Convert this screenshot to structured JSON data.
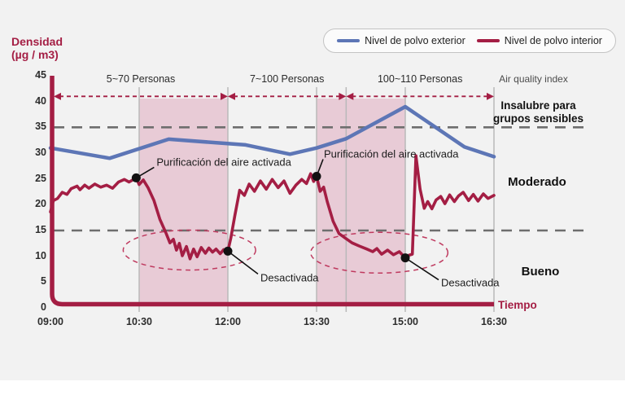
{
  "header": {
    "y_axis_title_line1": "Densidad",
    "y_axis_title_line2": "(µg / m3)",
    "x_axis_title": "Tiempo"
  },
  "legend": {
    "items": [
      {
        "label": "Nivel de polvo exterior",
        "color": "#5d76b6"
      },
      {
        "label": "Nivel de polvo interior",
        "color": "#a41e44"
      }
    ]
  },
  "air_quality": {
    "title": "Air quality index",
    "zones": [
      {
        "label": "Insalubre para grupos sensibles"
      },
      {
        "label": "Moderado"
      },
      {
        "label": "Bueno"
      }
    ]
  },
  "colors": {
    "maroon": "#a41e44",
    "blue": "#5d76b6",
    "pink_region": "#e8cbd6",
    "boundary_gray": "#b9b9b9",
    "threshold_gray": "#6e6e6e",
    "ellipse_red": "#bf3a5f",
    "panel_bg": "#f2f2f2"
  },
  "chart_data": {
    "type": "line",
    "title": "",
    "xlabel": "Tiempo",
    "ylabel": "Densidad (µg / m3)",
    "xlim_hours": [
      9,
      16.5
    ],
    "ylim": [
      0,
      45
    ],
    "grid": false,
    "legend_position": "top-right",
    "x_ticks": [
      "09:00",
      "10:30",
      "12:00",
      "13:30",
      "15:00",
      "16:30"
    ],
    "x_tick_hours": [
      9,
      10.5,
      12,
      13.5,
      15,
      16.5
    ],
    "y_ticks": [
      45,
      40,
      35,
      30,
      25,
      20,
      15,
      10,
      5,
      0
    ],
    "threshold_values": [
      35,
      15
    ],
    "top_arrow_value": 41,
    "boundary_lines_hours": [
      10.5,
      12,
      13.5,
      14,
      15,
      16.5
    ],
    "shaded_regions": [
      {
        "from_hour": 10.5,
        "to_hour": 12
      },
      {
        "from_hour": 13.5,
        "to_hour": 15
      }
    ],
    "spans": [
      {
        "label": "5~70 Personas",
        "from_hour": 9,
        "to_hour": 12
      },
      {
        "label": "7~100 Personas",
        "from_hour": 12,
        "to_hour": 14
      },
      {
        "label": "100~110 Personas",
        "from_hour": 14,
        "to_hour": 16.5
      }
    ],
    "series": [
      {
        "name": "Nivel de polvo exterior",
        "color": "#5d76b6",
        "points": [
          [
            9,
            31
          ],
          [
            10,
            29
          ],
          [
            11,
            32.7
          ],
          [
            12.3,
            31.6
          ],
          [
            13.05,
            29.8
          ],
          [
            13.5,
            31
          ],
          [
            14,
            32.8
          ],
          [
            15,
            39
          ],
          [
            16,
            31.2
          ],
          [
            16.5,
            29.3
          ]
        ]
      },
      {
        "name": "Nivel de polvo interior",
        "color": "#a41e44",
        "points": [
          [
            9,
            18.6
          ],
          [
            9.05,
            20.8
          ],
          [
            9.12,
            21.2
          ],
          [
            9.2,
            22.4
          ],
          [
            9.28,
            22
          ],
          [
            9.35,
            23.1
          ],
          [
            9.45,
            23.6
          ],
          [
            9.5,
            22.9
          ],
          [
            9.58,
            23.8
          ],
          [
            9.65,
            23.2
          ],
          [
            9.75,
            24
          ],
          [
            9.85,
            23.4
          ],
          [
            9.95,
            23.8
          ],
          [
            10.05,
            23.2
          ],
          [
            10.15,
            24.4
          ],
          [
            10.25,
            24.9
          ],
          [
            10.33,
            24.4
          ],
          [
            10.45,
            25.2
          ],
          [
            10.5,
            23.9
          ],
          [
            10.57,
            24.8
          ],
          [
            10.65,
            23.3
          ],
          [
            10.75,
            20.8
          ],
          [
            10.85,
            17.2
          ],
          [
            10.95,
            14.6
          ],
          [
            11.02,
            12.6
          ],
          [
            11.08,
            13.3
          ],
          [
            11.13,
            11.2
          ],
          [
            11.18,
            12.5
          ],
          [
            11.23,
            10.1
          ],
          [
            11.3,
            11.9
          ],
          [
            11.36,
            9.5
          ],
          [
            11.42,
            11.4
          ],
          [
            11.48,
            9.9
          ],
          [
            11.55,
            11.7
          ],
          [
            11.62,
            10.6
          ],
          [
            11.68,
            11.6
          ],
          [
            11.74,
            10.8
          ],
          [
            11.8,
            11.4
          ],
          [
            11.87,
            10.5
          ],
          [
            11.93,
            11.3
          ],
          [
            12,
            11
          ],
          [
            12.05,
            13.5
          ],
          [
            12.12,
            18
          ],
          [
            12.2,
            22.8
          ],
          [
            12.28,
            21.8
          ],
          [
            12.36,
            24
          ],
          [
            12.45,
            22.6
          ],
          [
            12.55,
            24.6
          ],
          [
            12.65,
            23
          ],
          [
            12.75,
            24.9
          ],
          [
            12.85,
            23.3
          ],
          [
            12.95,
            24.6
          ],
          [
            13.05,
            22.2
          ],
          [
            13.15,
            23.8
          ],
          [
            13.25,
            24.9
          ],
          [
            13.33,
            24.1
          ],
          [
            13.4,
            26
          ],
          [
            13.45,
            24.5
          ],
          [
            13.5,
            25.5
          ],
          [
            13.56,
            22.6
          ],
          [
            13.62,
            23.4
          ],
          [
            13.68,
            20.6
          ],
          [
            13.78,
            16.8
          ],
          [
            13.88,
            14.4
          ],
          [
            14,
            13.4
          ],
          [
            14.1,
            12.6
          ],
          [
            14.22,
            12
          ],
          [
            14.35,
            11.4
          ],
          [
            14.45,
            10.9
          ],
          [
            14.52,
            11.5
          ],
          [
            14.6,
            10.4
          ],
          [
            14.7,
            11.2
          ],
          [
            14.8,
            10.3
          ],
          [
            14.9,
            10.9
          ],
          [
            15,
            9.7
          ],
          [
            15.06,
            10.2
          ],
          [
            15.12,
            10.4
          ],
          [
            15.18,
            29.5
          ],
          [
            15.25,
            23
          ],
          [
            15.32,
            19.3
          ],
          [
            15.38,
            20.6
          ],
          [
            15.45,
            19.2
          ],
          [
            15.52,
            20.9
          ],
          [
            15.6,
            21.6
          ],
          [
            15.67,
            20.2
          ],
          [
            15.75,
            21.9
          ],
          [
            15.83,
            20.6
          ],
          [
            15.9,
            21.7
          ],
          [
            15.98,
            22.4
          ],
          [
            16.07,
            20.8
          ],
          [
            16.15,
            22
          ],
          [
            16.23,
            20.7
          ],
          [
            16.32,
            22.1
          ],
          [
            16.4,
            21.2
          ],
          [
            16.5,
            21.8
          ]
        ]
      }
    ],
    "annotations": {
      "activada": {
        "label": "Purificación del aire activada",
        "points": [
          [
            10.45,
            25.2
          ],
          [
            13.5,
            25.5
          ]
        ]
      },
      "desactivada": {
        "label": "Desactivada",
        "points": [
          [
            12,
            11
          ],
          [
            15,
            9.7
          ]
        ]
      },
      "ellipses": [
        {
          "cx_hour": 11.35,
          "cy_value": 11.2,
          "rx_hours": 1.12,
          "ry_values": 3.87
        },
        {
          "cx_hour": 14.56,
          "cy_value": 10.7,
          "rx_hours": 1.16,
          "ry_values": 3.95
        }
      ]
    }
  }
}
